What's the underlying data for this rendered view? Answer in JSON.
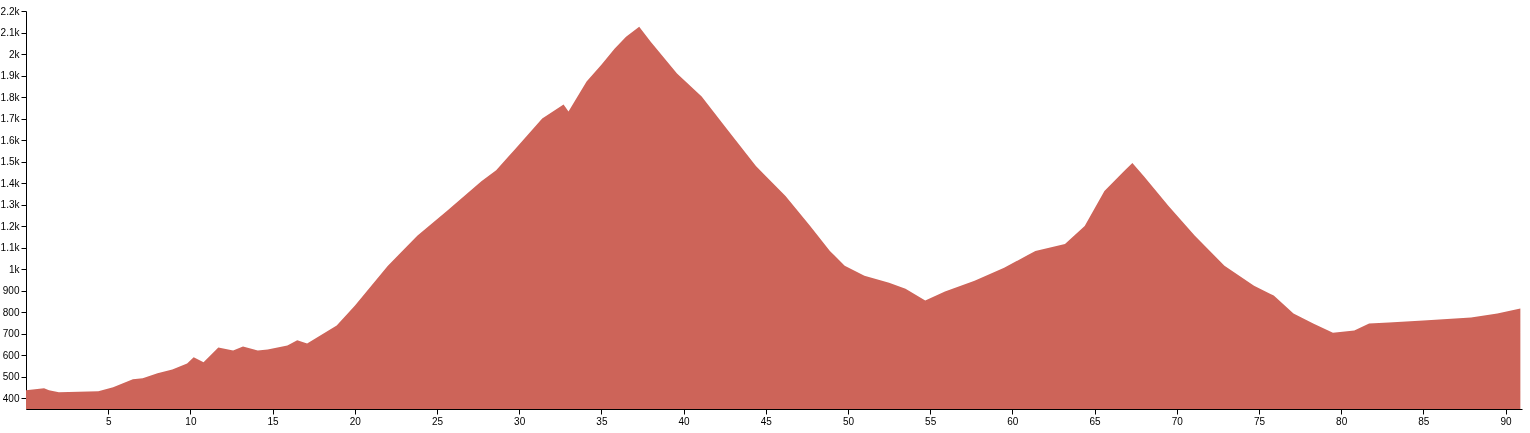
{
  "chart_data": {
    "type": "area",
    "grid": false,
    "xlim": [
      0,
      91
    ],
    "ylim": [
      350,
      2200
    ],
    "xticks": [
      5,
      10,
      15,
      20,
      25,
      30,
      35,
      40,
      45,
      50,
      55,
      60,
      65,
      70,
      75,
      80,
      85,
      90
    ],
    "yticks": [
      400,
      500,
      600,
      700,
      800,
      900,
      {
        "value": 1000,
        "label": "1k"
      },
      {
        "value": 1100,
        "label": "1.1k"
      },
      {
        "value": 1200,
        "label": "1.2k"
      },
      {
        "value": 1300,
        "label": "1.3k"
      },
      {
        "value": 1400,
        "label": "1.4k"
      },
      {
        "value": 1500,
        "label": "1.5k"
      },
      {
        "value": 1600,
        "label": "1.6k"
      },
      {
        "value": 1700,
        "label": "1.7k"
      },
      {
        "value": 1800,
        "label": "1.8k"
      },
      {
        "value": 1900,
        "label": "1.9k"
      },
      {
        "value": 2000,
        "label": "2k"
      },
      {
        "value": 2100,
        "label": "2.1k"
      },
      {
        "value": 2200,
        "label": "2.2k"
      }
    ],
    "x": [
      0,
      1.1,
      1.4,
      2,
      4.4,
      5.3,
      6.5,
      7.1,
      8,
      8.9,
      9.8,
      10.2,
      10.8,
      11.7,
      12.6,
      13.2,
      14.1,
      14.7,
      15.9,
      16.5,
      17.1,
      18.9,
      20,
      22,
      23.8,
      25.6,
      27.7,
      28.6,
      29.8,
      31.4,
      32.7,
      33,
      34.1,
      35,
      35.8,
      36.5,
      37.3,
      38,
      39.6,
      41.1,
      42.6,
      44.4,
      46.2,
      47.7,
      48.9,
      49.8,
      51,
      52.5,
      53.5,
      54.7,
      55.9,
      57.7,
      59.5,
      61.4,
      63.2,
      64.4,
      65.6,
      66.8,
      67.3,
      68,
      69.5,
      71.1,
      72.9,
      74.7,
      75.9,
      77.1,
      78.3,
      79.5,
      80.8,
      81.7,
      82.9,
      85,
      87.9,
      89.5,
      90.9
    ],
    "series": [
      {
        "color": "#cd6459",
        "values": [
          437,
          446,
          437,
          428,
          432,
          451,
          488,
          493,
          516,
          534,
          562,
          590,
          567,
          636,
          622,
          640,
          622,
          627,
          645,
          669,
          655,
          738,
          830,
          1015,
          1155,
          1270,
          1409,
          1460,
          1562,
          1700,
          1765,
          1733,
          1872,
          1950,
          2025,
          2080,
          2127,
          2057,
          1909,
          1803,
          1655,
          1479,
          1340,
          1201,
          1085,
          1016,
          969,
          937,
          909,
          854,
          896,
          946,
          1006,
          1085,
          1117,
          1201,
          1363,
          1456,
          1493,
          1432,
          1294,
          1155,
          1016,
          923,
          877,
          794,
          747,
          705,
          715,
          747,
          752,
          761,
          775,
          794,
          817
        ]
      }
    ]
  }
}
